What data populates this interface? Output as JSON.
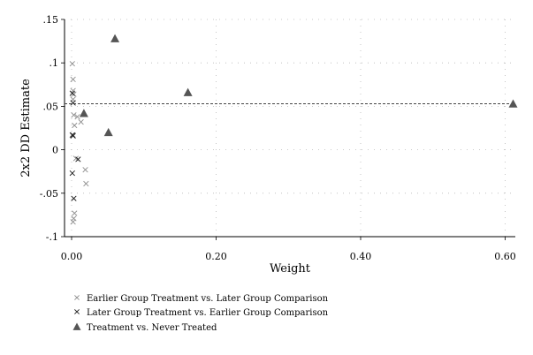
{
  "chart_data": {
    "type": "scatter",
    "xlabel": "Weight",
    "ylabel": "2x2 DD Estimate",
    "xlim": [
      0,
      0.615
    ],
    "ylim": [
      -0.1,
      0.15
    ],
    "x_ticks": [
      0.0,
      0.2,
      0.4,
      0.6
    ],
    "x_tick_labels": [
      "0.00",
      "0.20",
      "0.40",
      "0.60"
    ],
    "y_ticks": [
      -0.1,
      -0.05,
      0,
      0.05,
      0.1,
      0.15
    ],
    "y_tick_labels": [
      "-.1",
      "-.05",
      "0",
      ".05",
      ".1",
      ".15"
    ],
    "grid": true,
    "reference_line": {
      "y": 0.053,
      "style": "dashed"
    },
    "legend_position": "bottom-left",
    "series": [
      {
        "name": "Earlier Group Treatment vs. Later Group Comparison",
        "marker": "x",
        "color": "#8c8c8c",
        "points": [
          [
            0.001,
            0.099
          ],
          [
            0.002,
            0.081
          ],
          [
            0.002,
            0.068
          ],
          [
            0.003,
            0.064
          ],
          [
            0.002,
            0.058
          ],
          [
            0.003,
            0.04
          ],
          [
            0.008,
            0.038
          ],
          [
            0.004,
            0.028
          ],
          [
            0.013,
            0.032
          ],
          [
            0.002,
            0.017
          ],
          [
            0.006,
            -0.01
          ],
          [
            0.019,
            -0.023
          ],
          [
            0.02,
            -0.039
          ],
          [
            0.004,
            -0.073
          ],
          [
            0.003,
            -0.079
          ],
          [
            0.002,
            -0.083
          ]
        ]
      },
      {
        "name": "Later Group Treatment vs. Earlier Group Comparison",
        "marker": "x",
        "color": "#1a1a1a",
        "points": [
          [
            0.001,
            0.065
          ],
          [
            0.002,
            0.054
          ],
          [
            0.001,
            0.017
          ],
          [
            0.002,
            0.016
          ],
          [
            0.009,
            -0.011
          ],
          [
            0.001,
            -0.027
          ],
          [
            0.003,
            -0.056
          ]
        ]
      },
      {
        "name": "Treatment vs. Never Treated",
        "marker": "triangle",
        "color": "#555555",
        "points": [
          [
            0.06,
            0.128
          ],
          [
            0.161,
            0.066
          ],
          [
            0.017,
            0.042
          ],
          [
            0.051,
            0.02
          ],
          [
            0.611,
            0.053
          ]
        ]
      }
    ]
  }
}
